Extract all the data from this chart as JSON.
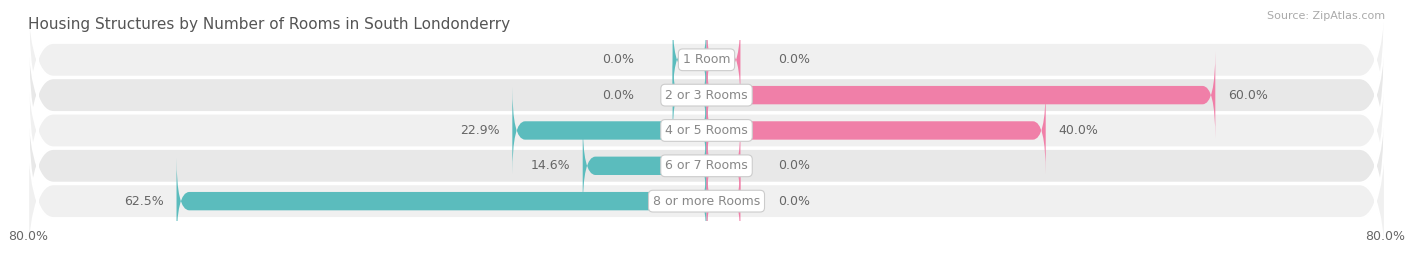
{
  "title": "Housing Structures by Number of Rooms in South Londonderry",
  "source": "Source: ZipAtlas.com",
  "categories": [
    "1 Room",
    "2 or 3 Rooms",
    "4 or 5 Rooms",
    "6 or 7 Rooms",
    "8 or more Rooms"
  ],
  "owner_values": [
    0.0,
    0.0,
    22.9,
    14.6,
    62.5
  ],
  "renter_values": [
    0.0,
    60.0,
    40.0,
    0.0,
    0.0
  ],
  "owner_color": "#5bbcbd",
  "renter_color": "#f07fa8",
  "row_bg_even": "#f0f0f0",
  "row_bg_odd": "#e8e8e8",
  "row_bg_border": "#d8d8d8",
  "axis_min": -80.0,
  "axis_max": 80.0,
  "label_color": "#666666",
  "title_color": "#555555",
  "source_color": "#aaaaaa",
  "center_label_color": "#888888",
  "value_fontsize": 9,
  "category_fontsize": 9,
  "title_fontsize": 11,
  "stub_size": 4.0,
  "bar_height": 0.52,
  "figsize": [
    14.06,
    2.69
  ],
  "dpi": 100
}
